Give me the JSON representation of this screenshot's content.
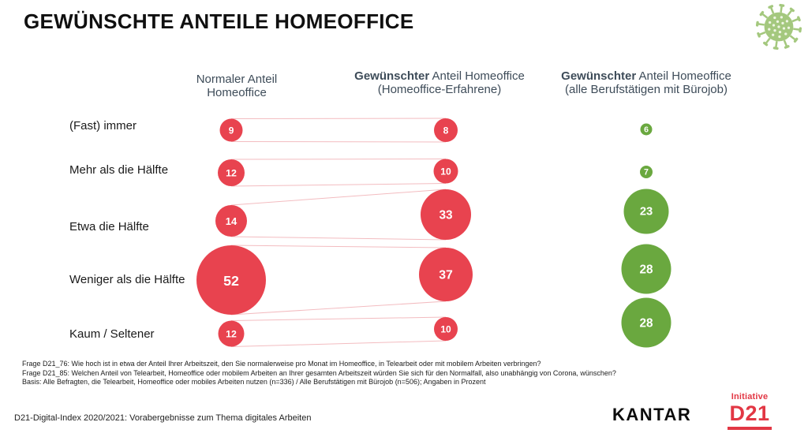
{
  "title": "GEWÜNSCHTE ANTEILE HOMEOFFICE",
  "colors": {
    "bubble_red": "#e8434f",
    "bubble_green": "#6aa83f",
    "connector_pink": "#f3bcc0",
    "header_text": "#3e4c59",
    "logo_red": "#e23744",
    "virus_green": "#a4c87e",
    "virus_dot": "#eef5e3"
  },
  "headers": [
    {
      "bold": "",
      "rest": "Normaler Anteil",
      "line2": "Homeoffice"
    },
    {
      "bold": "Gewünschter",
      "rest": " Anteil Homeoffice",
      "line2": "(Homeoffice-Erfahrene)"
    },
    {
      "bold": "Gewünschter",
      "rest": " Anteil Homeoffice",
      "line2": "(alle Berufstätigen mit Bürojob)"
    }
  ],
  "chart_data": {
    "type": "bubble",
    "title": "Gewünschte Anteile Homeoffice",
    "value_unit": "Prozent",
    "categories": [
      "(Fast) immer",
      "Mehr als die Hälfte",
      "Etwa die Hälfte",
      "Weniger als die Hälfte",
      "Kaum / Seltener"
    ],
    "series": [
      {
        "name": "Normaler Anteil Homeoffice",
        "color_key": "bubble_red",
        "values": [
          9,
          12,
          14,
          52,
          12
        ]
      },
      {
        "name": "Gewünschter Anteil Homeoffice (Homeoffice-Erfahrene)",
        "color_key": "bubble_red",
        "values": [
          8,
          10,
          33,
          37,
          10
        ]
      },
      {
        "name": "Gewünschter Anteil Homeoffice (alle Berufstätigen mit Bürojob)",
        "color_key": "bubble_green",
        "values": [
          6,
          7,
          23,
          28,
          28
        ]
      }
    ],
    "layout": {
      "col_cx": [
        293,
        565,
        819
      ],
      "row_label_y": [
        160,
        216,
        288,
        355,
        424
      ],
      "cy": [
        [
          165,
          165,
          164
        ],
        [
          219,
          217,
          218
        ],
        [
          280,
          272,
          268
        ],
        [
          355,
          348,
          341
        ],
        [
          423,
          417,
          409
        ]
      ],
      "d": [
        [
          29,
          30,
          15
        ],
        [
          34,
          31,
          16
        ],
        [
          40,
          64,
          57
        ],
        [
          88,
          68,
          63
        ],
        [
          33,
          30,
          63
        ]
      ],
      "connectors_between_series": [
        0,
        1
      ],
      "legend": "none",
      "grid": false
    }
  },
  "footnotes": [
    "Frage D21_76: Wie hoch ist in etwa der Anteil Ihrer Arbeitszeit, den Sie normalerweise pro Monat im Homeoffice, in Telearbeit oder mit mobilem Arbeiten verbringen?",
    "Frage D21_85: Welchen Anteil von Telearbeit, Homeoffice oder mobilem Arbeiten an Ihrer gesamten Arbeitszeit würden Sie sich für den Normalfall, also unabhängig von Corona, wünschen?",
    "Basis: Alle Befragten, die Telearbeit, Homeoffice oder mobiles Arbeiten nutzen (n=336) / Alle Berufstätigen mit Bürojob (n=506); Angaben in Prozent"
  ],
  "footer": {
    "source": "D21-Digital-Index 2020/2021: Vorabergebnisse zum Thema digitales Arbeiten",
    "kantar_logo": "KANTAR",
    "initiative_label": "Initiative",
    "initiative_name": "D21"
  }
}
